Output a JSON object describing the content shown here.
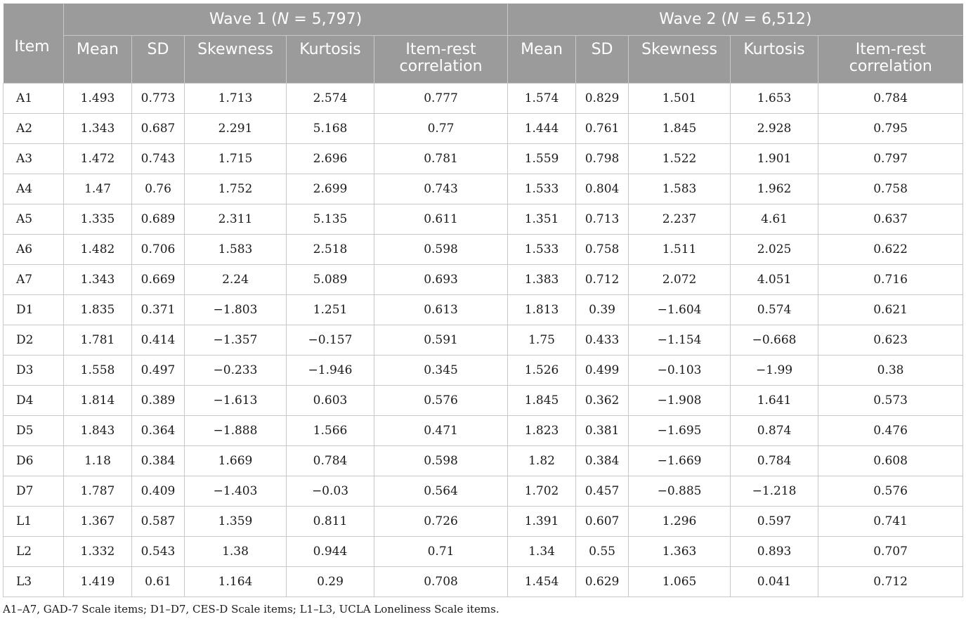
{
  "header": {
    "item_label": "Item",
    "wave1": {
      "prefix": "Wave 1 (",
      "n": "N",
      "suffix": " = 5,797)"
    },
    "wave2": {
      "prefix": "Wave 2 (",
      "n": "N",
      "suffix": " = 6,512)"
    },
    "columns": {
      "mean": "Mean",
      "sd": "SD",
      "skewness": "Skewness",
      "kurtosis": "Kurtosis",
      "irc_line1": "Item-rest",
      "irc_line2": "correlation"
    }
  },
  "rows": [
    [
      "A1",
      "1.493",
      "0.773",
      "1.713",
      "2.574",
      "0.777",
      "1.574",
      "0.829",
      "1.501",
      "1.653",
      "0.784"
    ],
    [
      "A2",
      "1.343",
      "0.687",
      "2.291",
      "5.168",
      "0.77",
      "1.444",
      "0.761",
      "1.845",
      "2.928",
      "0.795"
    ],
    [
      "A3",
      "1.472",
      "0.743",
      "1.715",
      "2.696",
      "0.781",
      "1.559",
      "0.798",
      "1.522",
      "1.901",
      "0.797"
    ],
    [
      "A4",
      "1.47",
      "0.76",
      "1.752",
      "2.699",
      "0.743",
      "1.533",
      "0.804",
      "1.583",
      "1.962",
      "0.758"
    ],
    [
      "A5",
      "1.335",
      "0.689",
      "2.311",
      "5.135",
      "0.611",
      "1.351",
      "0.713",
      "2.237",
      "4.61",
      "0.637"
    ],
    [
      "A6",
      "1.482",
      "0.706",
      "1.583",
      "2.518",
      "0.598",
      "1.533",
      "0.758",
      "1.511",
      "2.025",
      "0.622"
    ],
    [
      "A7",
      "1.343",
      "0.669",
      "2.24",
      "5.089",
      "0.693",
      "1.383",
      "0.712",
      "2.072",
      "4.051",
      "0.716"
    ],
    [
      "D1",
      "1.835",
      "0.371",
      "−1.803",
      "1.251",
      "0.613",
      "1.813",
      "0.39",
      "−1.604",
      "0.574",
      "0.621"
    ],
    [
      "D2",
      "1.781",
      "0.414",
      "−1.357",
      "−0.157",
      "0.591",
      "1.75",
      "0.433",
      "−1.154",
      "−0.668",
      "0.623"
    ],
    [
      "D3",
      "1.558",
      "0.497",
      "−0.233",
      "−1.946",
      "0.345",
      "1.526",
      "0.499",
      "−0.103",
      "−1.99",
      "0.38"
    ],
    [
      "D4",
      "1.814",
      "0.389",
      "−1.613",
      "0.603",
      "0.576",
      "1.845",
      "0.362",
      "−1.908",
      "1.641",
      "0.573"
    ],
    [
      "D5",
      "1.843",
      "0.364",
      "−1.888",
      "1.566",
      "0.471",
      "1.823",
      "0.381",
      "−1.695",
      "0.874",
      "0.476"
    ],
    [
      "D6",
      "1.18",
      "0.384",
      "1.669",
      "0.784",
      "0.598",
      "1.82",
      "0.384",
      "−1.669",
      "0.784",
      "0.608"
    ],
    [
      "D7",
      "1.787",
      "0.409",
      "−1.403",
      "−0.03",
      "0.564",
      "1.702",
      "0.457",
      "−0.885",
      "−1.218",
      "0.576"
    ],
    [
      "L1",
      "1.367",
      "0.587",
      "1.359",
      "0.811",
      "0.726",
      "1.391",
      "0.607",
      "1.296",
      "0.597",
      "0.741"
    ],
    [
      "L2",
      "1.332",
      "0.543",
      "1.38",
      "0.944",
      "0.71",
      "1.34",
      "0.55",
      "1.363",
      "0.893",
      "0.707"
    ],
    [
      "L3",
      "1.419",
      "0.61",
      "1.164",
      "0.29",
      "0.708",
      "1.454",
      "0.629",
      "1.065",
      "0.041",
      "0.712"
    ]
  ],
  "footnote": "A1–A7, GAD-7 Scale items; D1–D7, CES-D Scale items; L1–L3, UCLA Loneliness Scale items.",
  "colors": {
    "header_bg": "#9b9b9b",
    "header_text": "#ffffff",
    "grid": "#c8c8c8"
  }
}
